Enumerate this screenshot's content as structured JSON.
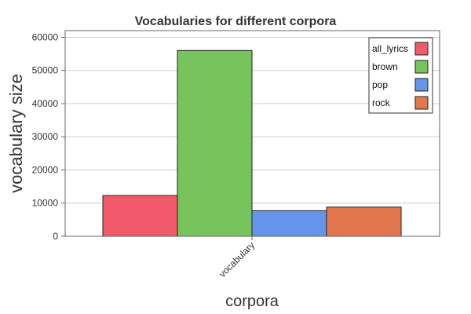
{
  "chart_data": {
    "type": "bar",
    "title": "Vocabularies for different corpora",
    "xlabel": "corpora",
    "ylabel": "vocabulary size",
    "categories": [
      "vocabulary"
    ],
    "series": [
      {
        "name": "all_lyrics",
        "values": [
          12300
        ],
        "color": "#f25a6c"
      },
      {
        "name": "brown",
        "values": [
          56000
        ],
        "color": "#78c45c"
      },
      {
        "name": "pop",
        "values": [
          7700
        ],
        "color": "#6595ea"
      },
      {
        "name": "rock",
        "values": [
          8800
        ],
        "color": "#e2774e"
      }
    ],
    "ylim": [
      0,
      62000
    ],
    "yticks": [
      "0",
      "10000",
      "20000",
      "30000",
      "40000",
      "50000",
      "60000"
    ],
    "grid": true,
    "legend_position": "top-right"
  }
}
